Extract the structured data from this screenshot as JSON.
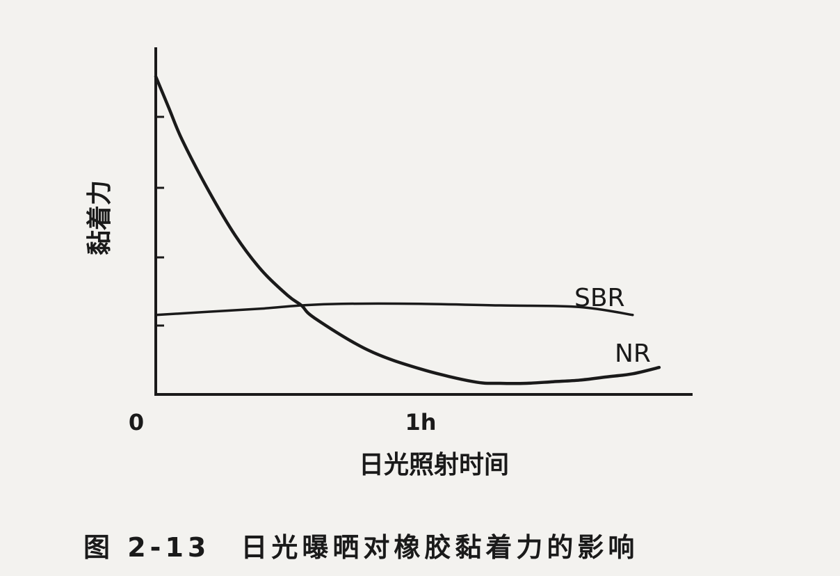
{
  "chart_data": {
    "type": "line",
    "title": "",
    "xlabel": "日光照射时间",
    "ylabel": "黏着力",
    "x_ticks": [
      {
        "x": 0,
        "label": "0"
      },
      {
        "x": 1,
        "label": "1h"
      }
    ],
    "xlim": [
      0,
      2
    ],
    "ylim": [
      0,
      1
    ],
    "series": [
      {
        "name": "SBR",
        "x": [
          0,
          0.2,
          0.4,
          0.55,
          0.7,
          1.0,
          1.3,
          1.6,
          1.8
        ],
        "y": [
          0.25,
          0.26,
          0.27,
          0.28,
          0.285,
          0.285,
          0.28,
          0.275,
          0.25
        ]
      },
      {
        "name": "NR",
        "x": [
          0,
          0.05,
          0.1,
          0.2,
          0.3,
          0.4,
          0.5,
          0.55,
          0.6,
          0.8,
          1.0,
          1.2,
          1.3,
          1.4,
          1.5,
          1.6,
          1.7,
          1.8,
          1.9
        ],
        "y": [
          1.0,
          0.9,
          0.8,
          0.64,
          0.5,
          0.39,
          0.31,
          0.28,
          0.24,
          0.14,
          0.08,
          0.04,
          0.035,
          0.035,
          0.04,
          0.045,
          0.055,
          0.065,
          0.085
        ]
      }
    ]
  },
  "caption": "图 2-13　日光曝晒对橡胶黏着力的影响"
}
